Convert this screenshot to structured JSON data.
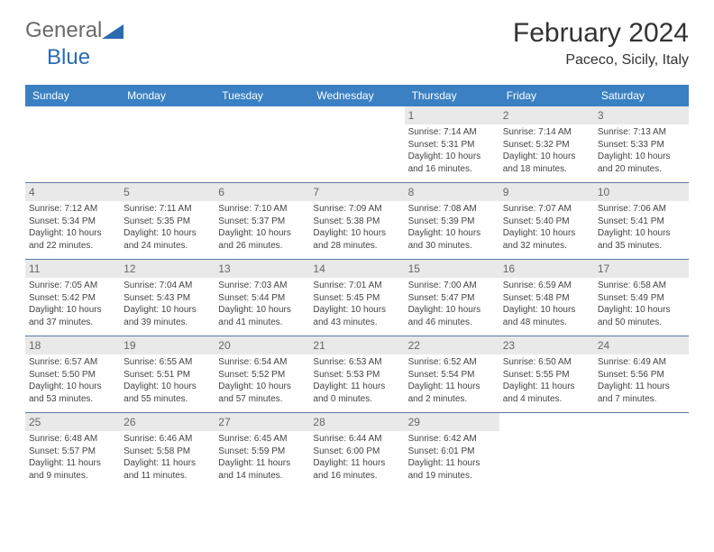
{
  "logo": {
    "text_left": "General",
    "text_right": "Blue",
    "color_gray": "#6a6a6a",
    "color_blue": "#2b6cb0"
  },
  "title": "February 2024",
  "location": "Paceco, Sicily, Italy",
  "header_bg": "#3a80c3",
  "day_names": [
    "Sunday",
    "Monday",
    "Tuesday",
    "Wednesday",
    "Thursday",
    "Friday",
    "Saturday"
  ],
  "first_weekday_index": 4,
  "days_in_month": 29,
  "days": {
    "1": {
      "sunrise": "7:14 AM",
      "sunset": "5:31 PM",
      "daylight": "10 hours and 16 minutes."
    },
    "2": {
      "sunrise": "7:14 AM",
      "sunset": "5:32 PM",
      "daylight": "10 hours and 18 minutes."
    },
    "3": {
      "sunrise": "7:13 AM",
      "sunset": "5:33 PM",
      "daylight": "10 hours and 20 minutes."
    },
    "4": {
      "sunrise": "7:12 AM",
      "sunset": "5:34 PM",
      "daylight": "10 hours and 22 minutes."
    },
    "5": {
      "sunrise": "7:11 AM",
      "sunset": "5:35 PM",
      "daylight": "10 hours and 24 minutes."
    },
    "6": {
      "sunrise": "7:10 AM",
      "sunset": "5:37 PM",
      "daylight": "10 hours and 26 minutes."
    },
    "7": {
      "sunrise": "7:09 AM",
      "sunset": "5:38 PM",
      "daylight": "10 hours and 28 minutes."
    },
    "8": {
      "sunrise": "7:08 AM",
      "sunset": "5:39 PM",
      "daylight": "10 hours and 30 minutes."
    },
    "9": {
      "sunrise": "7:07 AM",
      "sunset": "5:40 PM",
      "daylight": "10 hours and 32 minutes."
    },
    "10": {
      "sunrise": "7:06 AM",
      "sunset": "5:41 PM",
      "daylight": "10 hours and 35 minutes."
    },
    "11": {
      "sunrise": "7:05 AM",
      "sunset": "5:42 PM",
      "daylight": "10 hours and 37 minutes."
    },
    "12": {
      "sunrise": "7:04 AM",
      "sunset": "5:43 PM",
      "daylight": "10 hours and 39 minutes."
    },
    "13": {
      "sunrise": "7:03 AM",
      "sunset": "5:44 PM",
      "daylight": "10 hours and 41 minutes."
    },
    "14": {
      "sunrise": "7:01 AM",
      "sunset": "5:45 PM",
      "daylight": "10 hours and 43 minutes."
    },
    "15": {
      "sunrise": "7:00 AM",
      "sunset": "5:47 PM",
      "daylight": "10 hours and 46 minutes."
    },
    "16": {
      "sunrise": "6:59 AM",
      "sunset": "5:48 PM",
      "daylight": "10 hours and 48 minutes."
    },
    "17": {
      "sunrise": "6:58 AM",
      "sunset": "5:49 PM",
      "daylight": "10 hours and 50 minutes."
    },
    "18": {
      "sunrise": "6:57 AM",
      "sunset": "5:50 PM",
      "daylight": "10 hours and 53 minutes."
    },
    "19": {
      "sunrise": "6:55 AM",
      "sunset": "5:51 PM",
      "daylight": "10 hours and 55 minutes."
    },
    "20": {
      "sunrise": "6:54 AM",
      "sunset": "5:52 PM",
      "daylight": "10 hours and 57 minutes."
    },
    "21": {
      "sunrise": "6:53 AM",
      "sunset": "5:53 PM",
      "daylight": "11 hours and 0 minutes."
    },
    "22": {
      "sunrise": "6:52 AM",
      "sunset": "5:54 PM",
      "daylight": "11 hours and 2 minutes."
    },
    "23": {
      "sunrise": "6:50 AM",
      "sunset": "5:55 PM",
      "daylight": "11 hours and 4 minutes."
    },
    "24": {
      "sunrise": "6:49 AM",
      "sunset": "5:56 PM",
      "daylight": "11 hours and 7 minutes."
    },
    "25": {
      "sunrise": "6:48 AM",
      "sunset": "5:57 PM",
      "daylight": "11 hours and 9 minutes."
    },
    "26": {
      "sunrise": "6:46 AM",
      "sunset": "5:58 PM",
      "daylight": "11 hours and 11 minutes."
    },
    "27": {
      "sunrise": "6:45 AM",
      "sunset": "5:59 PM",
      "daylight": "11 hours and 14 minutes."
    },
    "28": {
      "sunrise": "6:44 AM",
      "sunset": "6:00 PM",
      "daylight": "11 hours and 16 minutes."
    },
    "29": {
      "sunrise": "6:42 AM",
      "sunset": "6:01 PM",
      "daylight": "11 hours and 19 minutes."
    }
  },
  "labels": {
    "sunrise": "Sunrise:",
    "sunset": "Sunset:",
    "daylight": "Daylight:"
  }
}
